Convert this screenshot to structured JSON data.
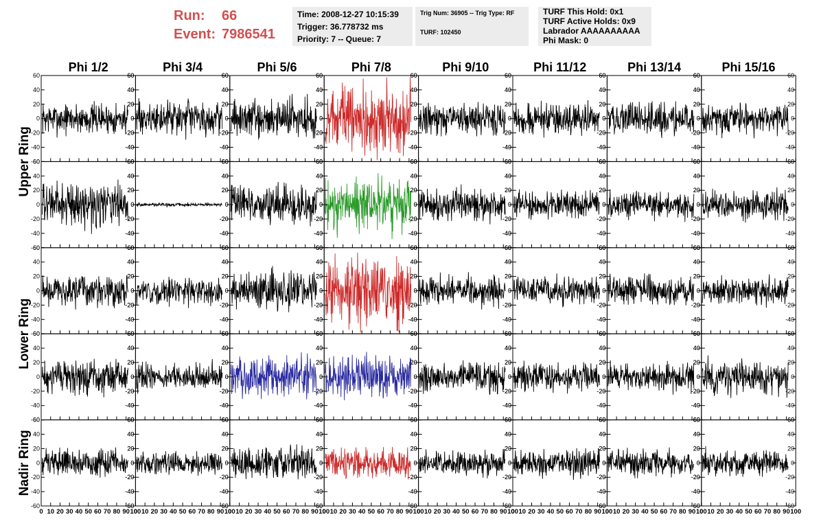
{
  "header": {
    "run_label": "Run:",
    "run_value": "66",
    "event_label": "Event:",
    "event_value": "7986541",
    "time": "Time: 2008-12-27 10:15:39",
    "trigger": "Trigger: 36.778732 ms",
    "priority": "Priority: 7 -- Queue: 7",
    "trig_num": "Trig Num: 36905 -- Trig Type: RF",
    "turf": "TURF: 102450",
    "turf_this_hold": "TURF This Hold: 0x1",
    "turf_active_holds": "TURF Active Holds: 0x9",
    "labrador": "Labrador AAAAAAAAAA",
    "phi_mask": "Phi Mask: 0"
  },
  "chart_data": {
    "type": "line",
    "columns": [
      "Phi 1/2",
      "Phi 3/4",
      "Phi 5/6",
      "Phi 7/8",
      "Phi 9/10",
      "Phi 11/12",
      "Phi 13/14",
      "Phi 15/16"
    ],
    "rings": [
      {
        "name": "Upper Ring",
        "rows": [
          0,
          1
        ]
      },
      {
        "name": "Lower Ring",
        "rows": [
          2,
          3
        ]
      },
      {
        "name": "Nadir Ring",
        "rows": [
          4
        ]
      }
    ],
    "xlim": [
      0,
      100
    ],
    "ylim": [
      -60,
      60
    ],
    "x_ticks": [
      0,
      10,
      20,
      30,
      40,
      50,
      60,
      70,
      80,
      90,
      100
    ],
    "y_ticks": [
      -60,
      -40,
      -20,
      0,
      20,
      40,
      60
    ],
    "colors": {
      "default": "#000000",
      "red": "#cc2a2a",
      "green": "#2a9a2a",
      "blue": "#2a2aa0"
    },
    "panels": [
      [
        {
          "amp": 13,
          "color": "default"
        },
        {
          "amp": 14,
          "color": "default"
        },
        {
          "amp": 16,
          "color": "default"
        },
        {
          "amp": 28,
          "color": "red"
        },
        {
          "amp": 13,
          "color": "default"
        },
        {
          "amp": 13,
          "color": "default"
        },
        {
          "amp": 13,
          "color": "default"
        },
        {
          "amp": 13,
          "color": "default"
        }
      ],
      [
        {
          "amp": 18,
          "color": "default"
        },
        {
          "amp": 1.5,
          "color": "default"
        },
        {
          "amp": 16,
          "color": "default"
        },
        {
          "amp": 22,
          "color": "green"
        },
        {
          "amp": 13,
          "color": "default"
        },
        {
          "amp": 11,
          "color": "default"
        },
        {
          "amp": 11,
          "color": "default"
        },
        {
          "amp": 13,
          "color": "default"
        }
      ],
      [
        {
          "amp": 13,
          "color": "default"
        },
        {
          "amp": 11,
          "color": "default"
        },
        {
          "amp": 16,
          "color": "default"
        },
        {
          "amp": 28,
          "color": "red"
        },
        {
          "amp": 12,
          "color": "default"
        },
        {
          "amp": 12,
          "color": "default"
        },
        {
          "amp": 12,
          "color": "default"
        },
        {
          "amp": 12,
          "color": "default"
        }
      ],
      [
        {
          "amp": 14,
          "color": "default"
        },
        {
          "amp": 11,
          "color": "default"
        },
        {
          "amp": 18,
          "color": "blue"
        },
        {
          "amp": 18,
          "color": "blue"
        },
        {
          "amp": 12,
          "color": "default"
        },
        {
          "amp": 12,
          "color": "default"
        },
        {
          "amp": 12,
          "color": "default"
        },
        {
          "amp": 14,
          "color": "default"
        }
      ],
      [
        {
          "amp": 11,
          "color": "default"
        },
        {
          "amp": 9,
          "color": "default"
        },
        {
          "amp": 14,
          "color": "default"
        },
        {
          "amp": 12,
          "color": "red"
        },
        {
          "amp": 10,
          "color": "default"
        },
        {
          "amp": 11,
          "color": "default"
        },
        {
          "amp": 11,
          "color": "default"
        },
        {
          "amp": 11,
          "color": "default"
        }
      ]
    ]
  }
}
